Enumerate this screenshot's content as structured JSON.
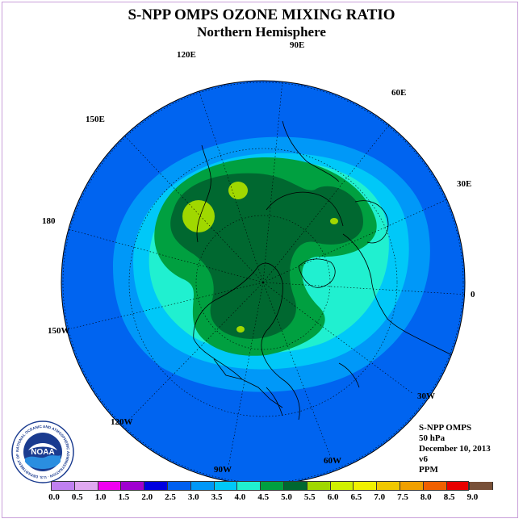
{
  "title": "S-NPP OMPS OZONE MIXING RATIO",
  "subtitle": "Northern Hemisphere",
  "longitude_labels": [
    "90E",
    "60E",
    "30E",
    "0",
    "30W",
    "60W",
    "90W",
    "120W",
    "150W",
    "180",
    "150E",
    "120E"
  ],
  "info": {
    "instrument": "S-NPP OMPS",
    "pressure": "50 hPa",
    "date": "December 10, 2013",
    "version": "v6",
    "units": "PPM"
  },
  "colorbar": {
    "ticks": [
      "0.0",
      "0.5",
      "1.0",
      "1.5",
      "2.0",
      "2.5",
      "3.0",
      "3.5",
      "4.0",
      "4.5",
      "5.0",
      "5.5",
      "6.0",
      "6.5",
      "7.0",
      "7.5",
      "8.0",
      "8.5",
      "9.0"
    ],
    "colors": [
      "#c080f0",
      "#e0a8f0",
      "#f000f0",
      "#a000d0",
      "#0000e0",
      "#0060f0",
      "#0098f8",
      "#00c8f8",
      "#20f0d0",
      "#00a040",
      "#006830",
      "#a0d800",
      "#d0f000",
      "#f0f000",
      "#f0c800",
      "#f0a000",
      "#f06000",
      "#e80000",
      "#785038"
    ]
  },
  "logo": {
    "text": "NOAA",
    "ring_text": "NATIONAL OCEANIC AND ATMOSPHERIC ADMINISTRATION · U.S. DEPARTMENT OF COMMERCE"
  }
}
